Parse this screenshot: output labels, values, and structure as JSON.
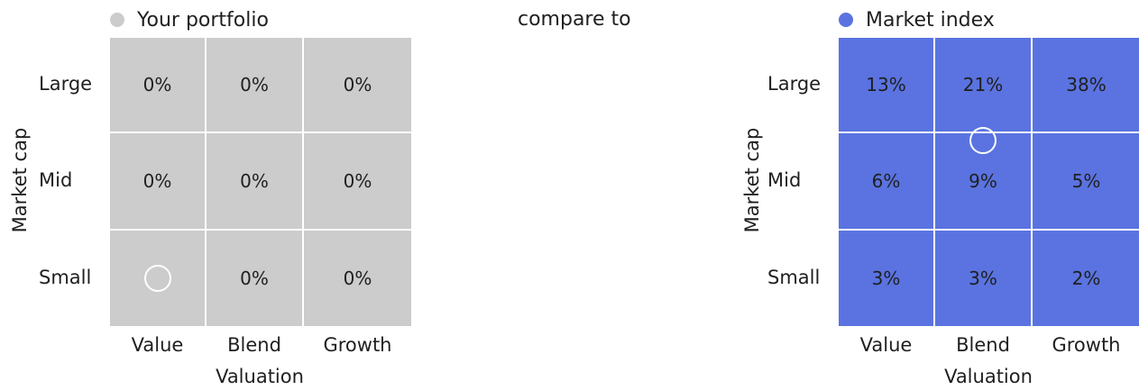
{
  "compare_label": "compare to",
  "colors": {
    "portfolio": "#cccccc",
    "index": "#5a73e0",
    "marker": "#ffffff"
  },
  "chart_data": [
    {
      "type": "heatmap",
      "legend": "Your portfolio",
      "xlabel": "Valuation",
      "ylabel": "Market cap",
      "columns": [
        "Value",
        "Blend",
        "Growth"
      ],
      "rows": [
        "Large",
        "Mid",
        "Small"
      ],
      "cells": [
        [
          "0%",
          "0%",
          "0%"
        ],
        [
          "0%",
          "0%",
          "0%"
        ],
        [
          "",
          "0%",
          "0%"
        ]
      ],
      "values": [
        [
          0,
          0,
          0
        ],
        [
          0,
          0,
          0
        ],
        [
          null,
          0,
          0
        ]
      ],
      "marker": {
        "row": 2,
        "col": 0
      }
    },
    {
      "type": "heatmap",
      "legend": "Market index",
      "xlabel": "Valuation",
      "ylabel": "Market cap",
      "columns": [
        "Value",
        "Blend",
        "Growth"
      ],
      "rows": [
        "Large",
        "Mid",
        "Small"
      ],
      "cells": [
        [
          "13%",
          "21%",
          "38%"
        ],
        [
          "6%",
          "9%",
          "5%"
        ],
        [
          "3%",
          "3%",
          "2%"
        ]
      ],
      "values": [
        [
          13,
          21,
          38
        ],
        [
          6,
          9,
          5
        ],
        [
          3,
          3,
          2
        ]
      ],
      "marker": {
        "row": 0.6,
        "col": 1
      }
    }
  ]
}
